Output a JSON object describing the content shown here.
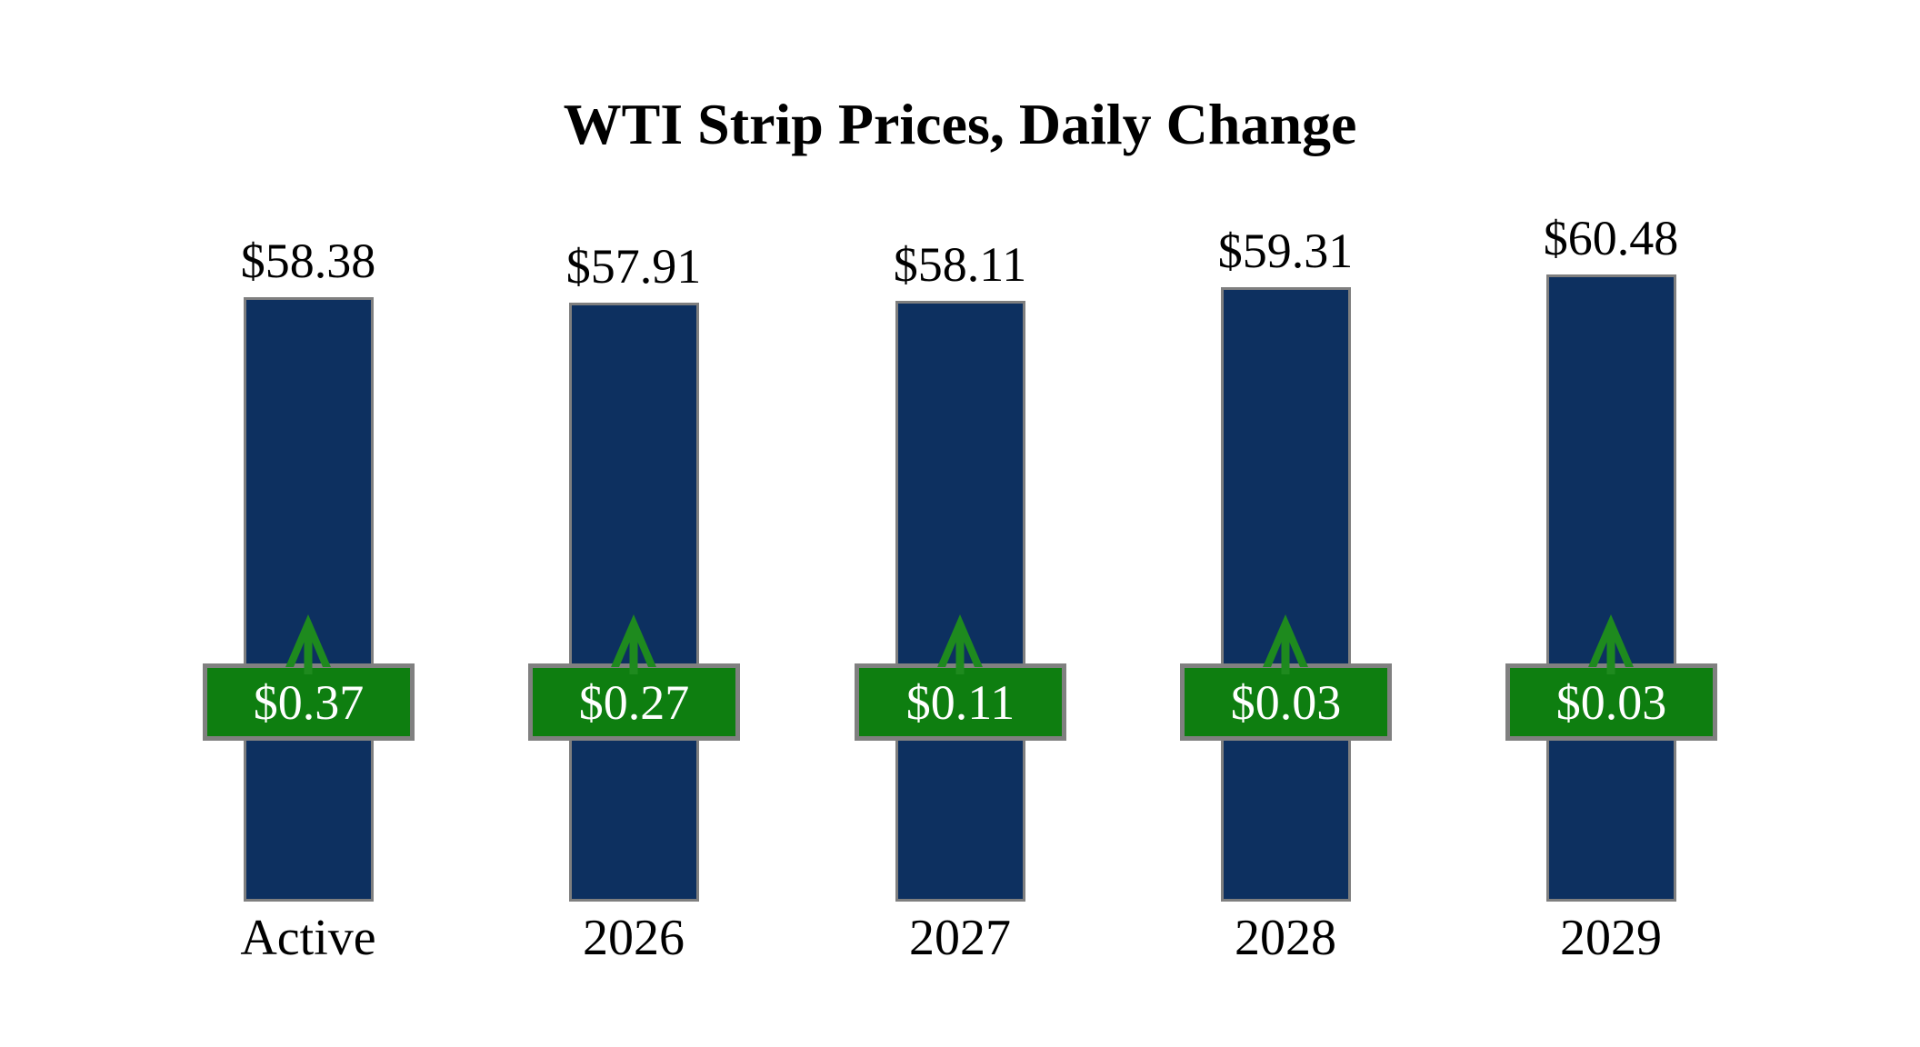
{
  "title": "WTI Strip Prices, Daily Change",
  "colors": {
    "background": "#ffffff",
    "bar_fill": "#0d3060",
    "bar_border": "#7f7f7f",
    "badge_fill": "#0e7e10",
    "badge_border": "#808080",
    "arrow_green": "#1e8a1e",
    "badge_text": "#ffffff",
    "text": "#000000"
  },
  "chart_data": {
    "type": "bar",
    "title": "WTI Strip Prices, Daily Change",
    "categories": [
      "Active",
      "2026",
      "2027",
      "2028",
      "2029"
    ],
    "series": [
      {
        "name": "WTI Strip Price",
        "values": [
          58.38,
          57.91,
          58.11,
          59.31,
          60.48
        ],
        "labels": [
          "$58.38",
          "$57.91",
          "$58.11",
          "$59.31",
          "$60.48"
        ]
      },
      {
        "name": "Daily Change",
        "values": [
          0.37,
          0.27,
          0.11,
          0.03,
          0.03
        ],
        "labels": [
          "$0.37",
          "$0.27",
          "$0.11",
          "$0.03",
          "$0.03"
        ],
        "direction": [
          "up",
          "up",
          "up",
          "up",
          "up"
        ]
      }
    ],
    "xlabel": "",
    "ylabel": "",
    "legend": "none",
    "grid": false,
    "axes_hidden": true
  }
}
